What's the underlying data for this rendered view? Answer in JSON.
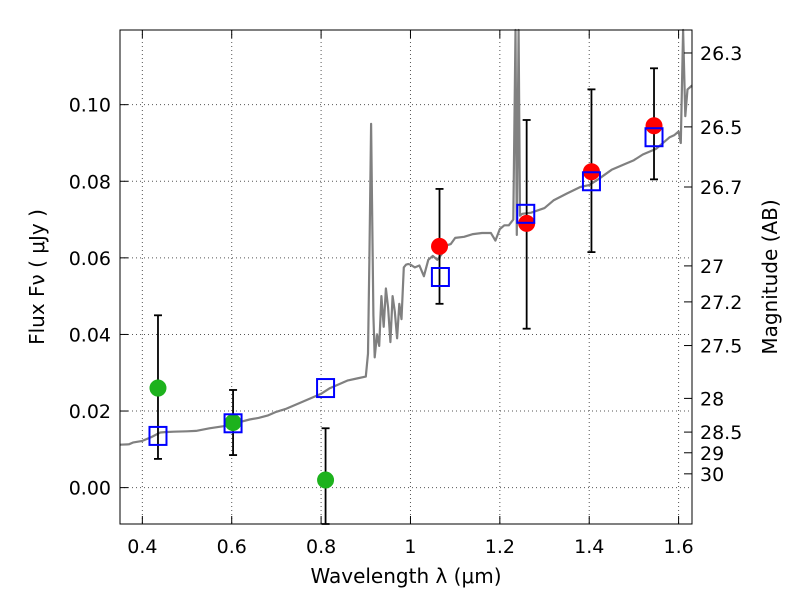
{
  "chart_data": {
    "type": "scatter",
    "xlabel": "Wavelength  λ (μm)",
    "ylabel": "Flux  Fν  ( μJy )",
    "ylabel_right": "Magnitude (AB)",
    "xlim": [
      0.35,
      1.63
    ],
    "ylim": [
      -0.0095,
      0.1195
    ],
    "grid": true,
    "x_ticks": [
      0.4,
      0.6,
      0.8,
      1.0,
      1.2,
      1.4,
      1.6
    ],
    "x_tick_labels": [
      "0.4",
      "0.6",
      "0.8",
      "1",
      "1.2",
      "1.4",
      "1.6"
    ],
    "y_ticks": [
      0.0,
      0.02,
      0.04,
      0.06,
      0.08,
      0.1
    ],
    "y_tick_labels": [
      "0.00",
      "0.02",
      "0.04",
      "0.06",
      "0.08",
      "0.10"
    ],
    "right_ticks": [
      {
        "label": "26.3",
        "flux": 0.1135
      },
      {
        "label": "26.5",
        "flux": 0.0942
      },
      {
        "label": "26.7",
        "flux": 0.0785
      },
      {
        "label": "27",
        "flux": 0.0579
      },
      {
        "label": "27.2",
        "flux": 0.0485
      },
      {
        "label": "27.5",
        "flux": 0.0371
      },
      {
        "label": "28",
        "flux": 0.0233
      },
      {
        "label": "28.5",
        "flux": 0.0145
      },
      {
        "label": "29",
        "flux": 0.0091
      },
      {
        "label": "30",
        "flux": 0.0036
      }
    ],
    "series": [
      {
        "marker": "circle",
        "color": "#1db21d",
        "x": [
          0.435,
          0.603,
          0.81
        ],
        "y": [
          0.026,
          0.017,
          0.002
        ],
        "yerr_low": [
          0.0075,
          0.0085,
          -0.0095
        ],
        "yerr_high": [
          0.045,
          0.0255,
          0.0155
        ]
      },
      {
        "marker": "circle",
        "color": "#ff0000",
        "x": [
          1.065,
          1.26,
          1.405,
          1.545
        ],
        "y": [
          0.063,
          0.069,
          0.0825,
          0.0945
        ],
        "yerr_low": [
          0.048,
          0.0415,
          0.0615,
          0.0805
        ],
        "yerr_high": [
          0.078,
          0.096,
          0.104,
          0.1095
        ]
      },
      {
        "marker": "open-square",
        "color": "#0000ff",
        "x": [
          0.435,
          0.603,
          0.81,
          1.067,
          1.258,
          1.405,
          1.545
        ],
        "y": [
          0.0135,
          0.0168,
          0.026,
          0.055,
          0.0715,
          0.08,
          0.0915
        ]
      },
      {
        "marker": "line",
        "color": "#808080",
        "x": [
          0.35,
          0.37,
          0.38,
          0.4,
          0.42,
          0.44,
          0.45,
          0.47,
          0.5,
          0.52,
          0.55,
          0.58,
          0.6,
          0.62,
          0.64,
          0.66,
          0.68,
          0.7,
          0.72,
          0.75,
          0.78,
          0.8,
          0.82,
          0.84,
          0.86,
          0.88,
          0.9,
          0.905,
          0.908,
          0.912,
          0.914,
          0.917,
          0.92,
          0.925,
          0.93,
          0.935,
          0.94,
          0.945,
          0.95,
          0.955,
          0.96,
          0.965,
          0.97,
          0.975,
          0.98,
          0.985,
          0.99,
          0.995,
          1.0,
          1.01,
          1.02,
          1.03,
          1.04,
          1.05,
          1.06,
          1.07,
          1.08,
          1.09,
          1.1,
          1.12,
          1.14,
          1.16,
          1.18,
          1.19,
          1.2,
          1.21,
          1.22,
          1.23,
          1.235,
          1.238,
          1.242,
          1.245,
          1.25,
          1.27,
          1.3,
          1.32,
          1.35,
          1.38,
          1.4,
          1.42,
          1.45,
          1.48,
          1.5,
          1.52,
          1.55,
          1.57,
          1.58,
          1.59,
          1.595,
          1.6,
          1.605,
          1.61,
          1.615,
          1.62,
          1.63
        ],
        "y": [
          0.0112,
          0.0113,
          0.0118,
          0.0122,
          0.0132,
          0.0144,
          0.0145,
          0.0146,
          0.0147,
          0.0148,
          0.0155,
          0.016,
          0.0165,
          0.0172,
          0.0178,
          0.0182,
          0.0188,
          0.0198,
          0.0205,
          0.022,
          0.0235,
          0.0245,
          0.026,
          0.027,
          0.028,
          0.0285,
          0.029,
          0.035,
          0.06,
          0.095,
          0.075,
          0.045,
          0.034,
          0.04,
          0.037,
          0.05,
          0.042,
          0.052,
          0.047,
          0.038,
          0.05,
          0.046,
          0.039,
          0.048,
          0.044,
          0.0575,
          0.0582,
          0.0584,
          0.0582,
          0.0575,
          0.058,
          0.0552,
          0.0595,
          0.0605,
          0.0595,
          0.061,
          0.0632,
          0.0636,
          0.0652,
          0.0655,
          0.0662,
          0.0665,
          0.0665,
          0.0645,
          0.0675,
          0.0685,
          0.0685,
          0.07,
          0.12,
          0.066,
          0.12,
          0.071,
          0.0715,
          0.0718,
          0.073,
          0.075,
          0.0768,
          0.0785,
          0.079,
          0.0805,
          0.083,
          0.0845,
          0.0855,
          0.087,
          0.0885,
          0.0905,
          0.0915,
          0.092,
          0.0925,
          0.093,
          0.09,
          0.12,
          0.097,
          0.104,
          0.105
        ]
      }
    ]
  }
}
